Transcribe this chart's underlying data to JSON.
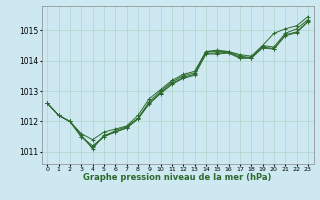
{
  "background_color": "#cde8f0",
  "grid_color": "#b0d4c8",
  "line_color": "#2d6a2d",
  "title": "Graphe pression niveau de la mer (hPa)",
  "xlabel_ticks": [
    0,
    1,
    2,
    3,
    4,
    5,
    6,
    7,
    8,
    9,
    10,
    11,
    12,
    13,
    14,
    15,
    16,
    17,
    18,
    19,
    20,
    21,
    22,
    23
  ],
  "ylim": [
    1010.6,
    1015.8
  ],
  "yticks": [
    1011,
    1012,
    1013,
    1014,
    1015
  ],
  "series": [
    [
      1012.6,
      1012.2,
      1012.0,
      1011.6,
      1011.4,
      1011.65,
      1011.75,
      1011.85,
      1012.2,
      1012.75,
      1013.05,
      1013.35,
      1013.55,
      1013.65,
      1014.3,
      1014.35,
      1014.3,
      1014.2,
      1014.15,
      1014.5,
      1014.9,
      1015.05,
      1015.15,
      1015.45
    ],
    [
      1012.6,
      1012.2,
      1012.0,
      1011.5,
      1011.2,
      1011.5,
      1011.7,
      1011.83,
      1012.1,
      1012.65,
      1013.0,
      1013.3,
      1013.5,
      1013.6,
      1014.3,
      1014.3,
      1014.3,
      1014.15,
      1014.1,
      1014.5,
      1014.45,
      1014.9,
      1015.05,
      1015.35
    ],
    [
      1012.6,
      1012.2,
      1012.0,
      1011.5,
      1011.15,
      1011.5,
      1011.65,
      1011.8,
      1012.1,
      1012.6,
      1012.95,
      1013.25,
      1013.45,
      1013.55,
      1014.25,
      1014.25,
      1014.28,
      1014.1,
      1014.1,
      1014.45,
      1014.4,
      1014.85,
      1014.95,
      1015.3
    ],
    [
      1012.6,
      1012.2,
      1012.0,
      1011.55,
      1011.1,
      1011.55,
      1011.65,
      1011.78,
      1012.08,
      1012.58,
      1012.92,
      1013.22,
      1013.42,
      1013.52,
      1014.22,
      1014.22,
      1014.25,
      1014.08,
      1014.08,
      1014.42,
      1014.38,
      1014.82,
      1014.92,
      1015.28
    ]
  ]
}
